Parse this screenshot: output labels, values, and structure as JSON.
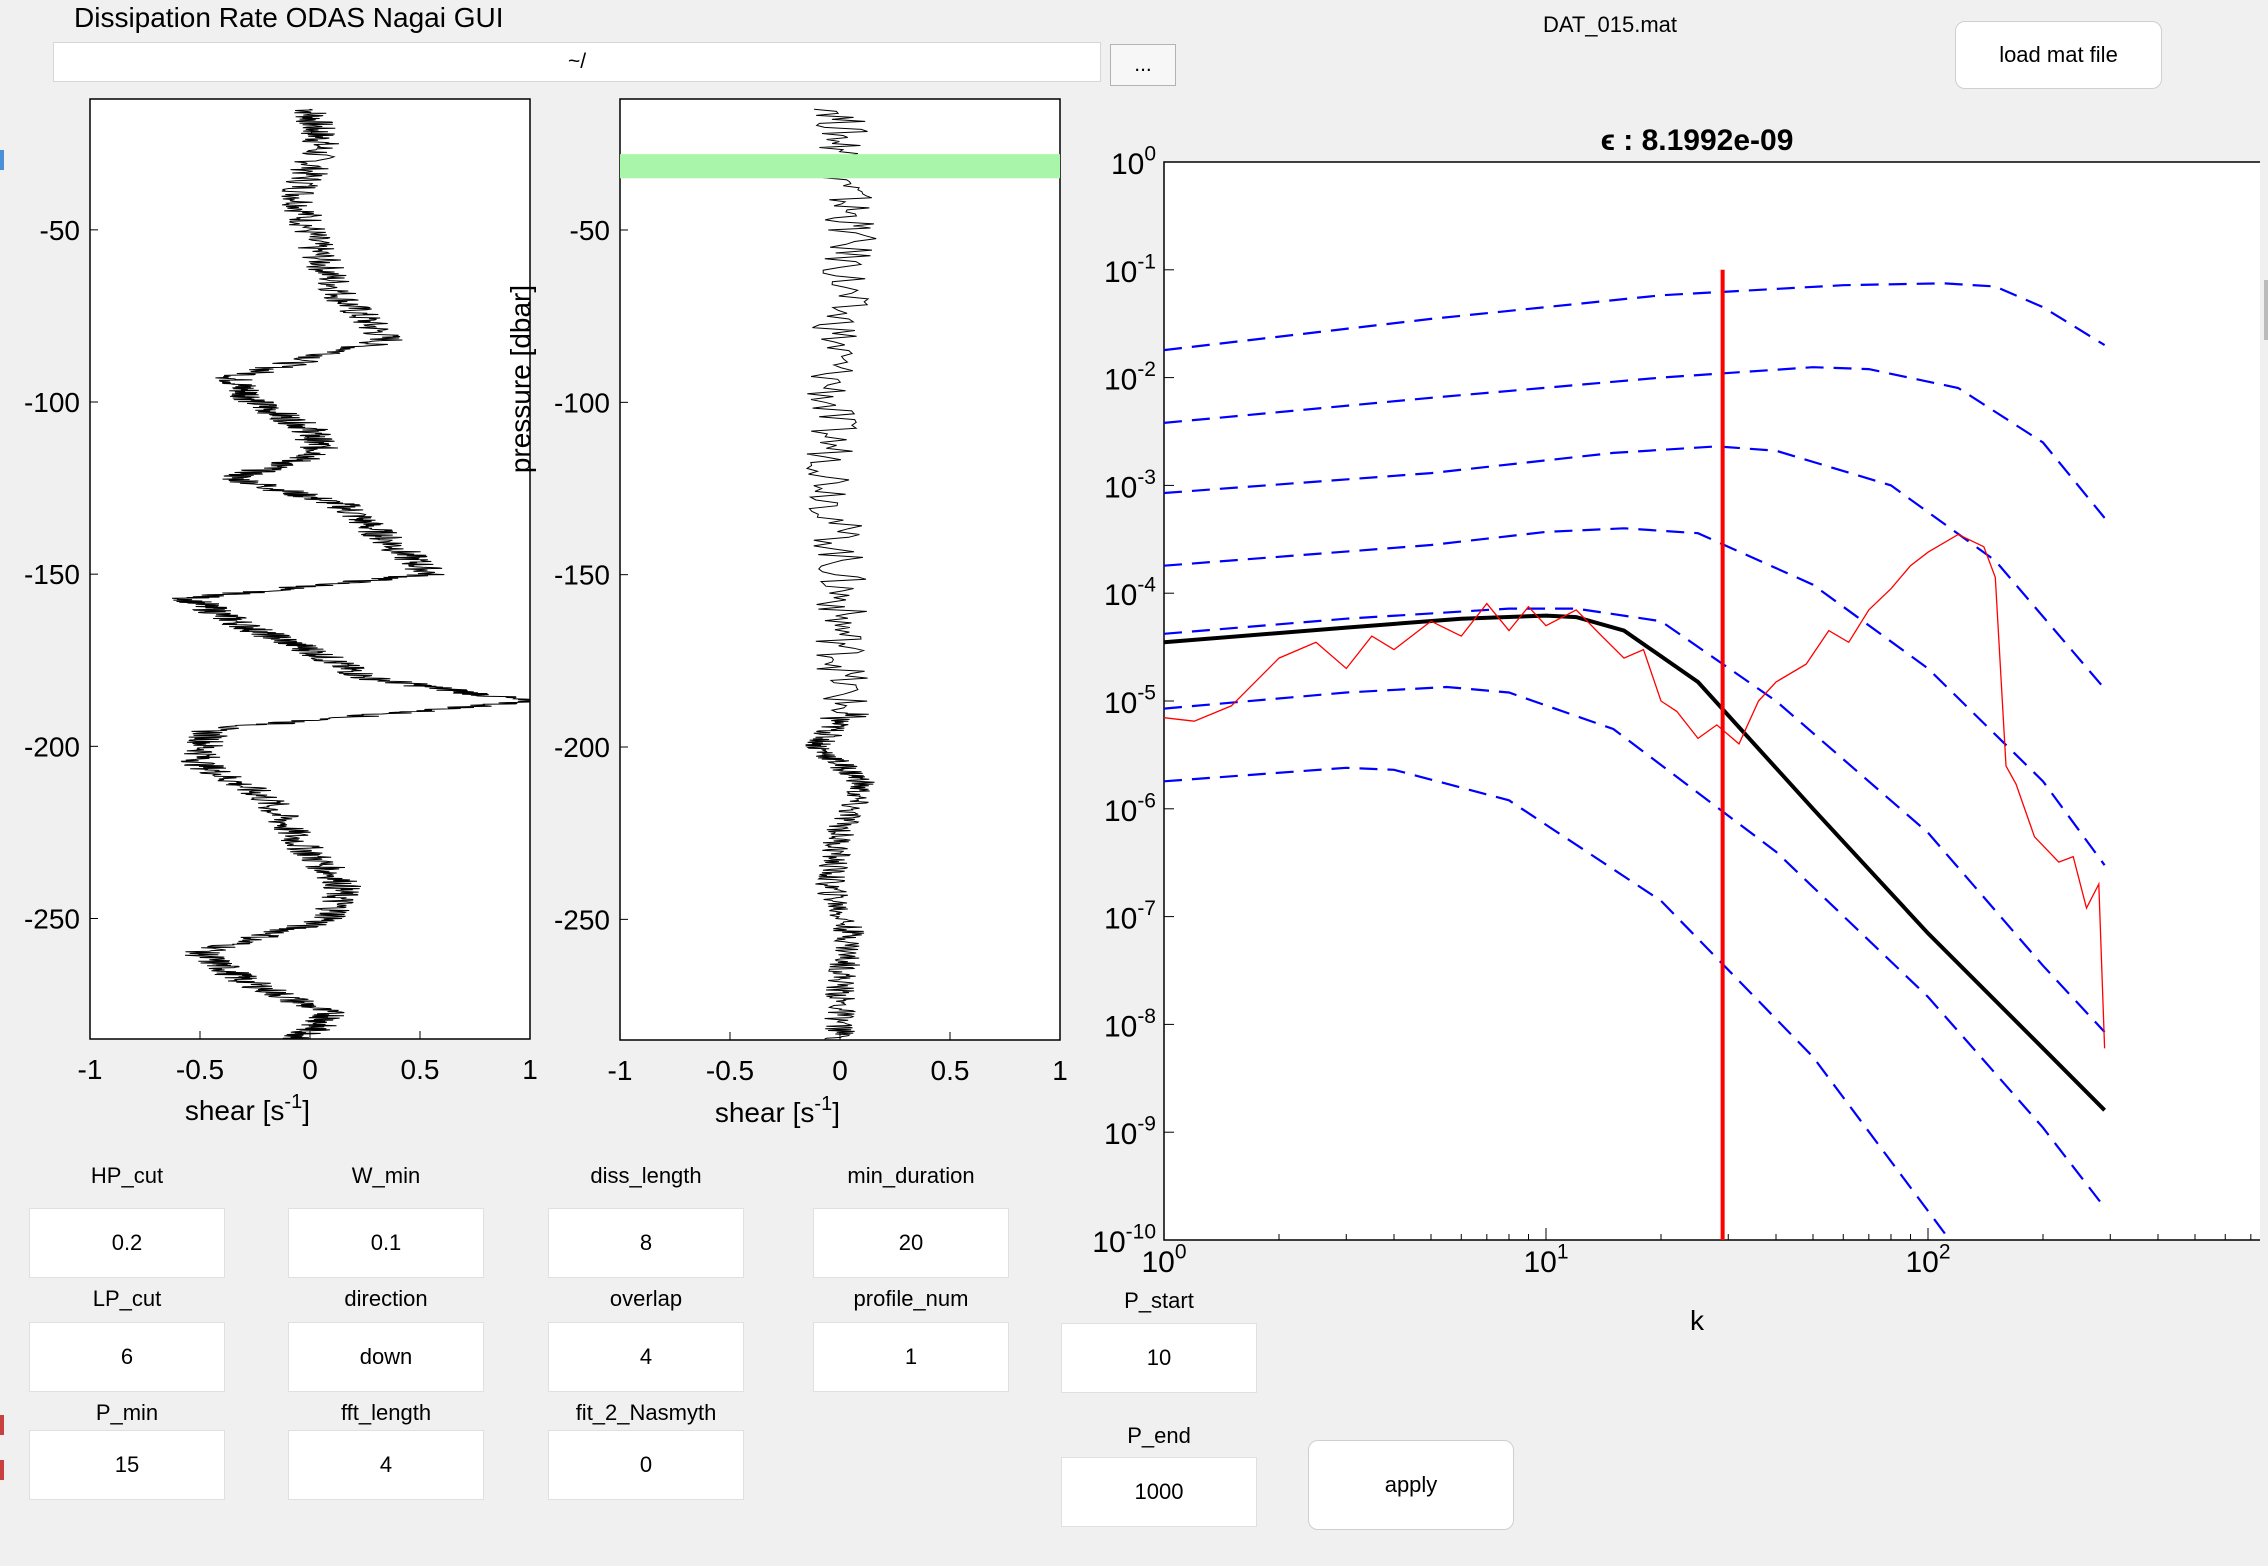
{
  "app": {
    "title": "Dissipation Rate ODAS Nagai GUI",
    "path_value": "~/",
    "browse_label": "...",
    "file_name": "DAT_015.mat",
    "load_label": "load mat file",
    "apply_label": "apply"
  },
  "params": {
    "HP_cut": {
      "label": "HP_cut",
      "value": "0.2"
    },
    "W_min": {
      "label": "W_min",
      "value": "0.1"
    },
    "diss_length": {
      "label": "diss_length",
      "value": "8"
    },
    "min_duration": {
      "label": "min_duration",
      "value": "20"
    },
    "LP_cut": {
      "label": "LP_cut",
      "value": "6"
    },
    "direction": {
      "label": "direction",
      "value": "down"
    },
    "overlap": {
      "label": "overlap",
      "value": "4"
    },
    "profile_num": {
      "label": "profile_num",
      "value": "1"
    },
    "P_start": {
      "label": "P_start",
      "value": "10"
    },
    "P_min": {
      "label": "P_min",
      "value": "15"
    },
    "fft_length": {
      "label": "fft_length",
      "value": "4"
    },
    "fit_2_Nasmyth": {
      "label": "fit_2_Nasmyth",
      "value": "0"
    },
    "P_end": {
      "label": "P_end",
      "value": "1000"
    }
  },
  "colors": {
    "trace": "#000000",
    "spectrum": "#ff0000",
    "nasmyth_ref": "#0000ff",
    "highlight_band": "#a9f5a9",
    "kcut_line": "#ff0000"
  },
  "chart_data": [
    {
      "type": "line",
      "title": "",
      "xlabel": "shear [s-1]",
      "ylabel": "",
      "xlim": [
        -1,
        1
      ],
      "ylim": [
        -285,
        -12
      ],
      "x_ticks": [
        "-1",
        "-0.5",
        "0",
        "0.5",
        "1"
      ],
      "y_ticks": [
        "-50",
        "-100",
        "-150",
        "-200",
        "-250"
      ],
      "series": [
        {
          "points": [
            [
              0.0,
              -15
            ],
            [
              0.05,
              -25
            ],
            [
              -0.05,
              -40
            ],
            [
              0.02,
              -55
            ],
            [
              0.15,
              -70
            ],
            [
              0.35,
              -82
            ],
            [
              -0.35,
              -93
            ],
            [
              -0.25,
              -100
            ],
            [
              0.0,
              -108
            ],
            [
              0.05,
              -115
            ],
            [
              -0.35,
              -122
            ],
            [
              0.15,
              -130
            ],
            [
              0.35,
              -140
            ],
            [
              0.55,
              -150
            ],
            [
              -0.55,
              -157
            ],
            [
              -0.3,
              -165
            ],
            [
              0.0,
              -172
            ],
            [
              0.25,
              -180
            ],
            [
              1.0,
              -187
            ],
            [
              -0.45,
              -195
            ],
            [
              -0.5,
              -205
            ],
            [
              -0.2,
              -215
            ],
            [
              -0.05,
              -228
            ],
            [
              0.15,
              -240
            ],
            [
              0.1,
              -250
            ],
            [
              -0.5,
              -260
            ],
            [
              -0.3,
              -268
            ],
            [
              0.1,
              -278
            ],
            [
              -0.05,
              -285
            ]
          ]
        }
      ]
    },
    {
      "type": "line",
      "title": "",
      "xlabel": "shear [s-1]",
      "ylabel": "pressure [dbar]",
      "xlim": [
        -1,
        1
      ],
      "ylim": [
        -285,
        -12
      ],
      "x_ticks": [
        "-1",
        "-0.5",
        "0",
        "0.5",
        "1"
      ],
      "y_ticks": [
        "-50",
        "-100",
        "-150",
        "-200",
        "-250"
      ],
      "highlight_band": [
        -28,
        -35
      ],
      "series": [
        {
          "points": [
            [
              0.0,
              -15
            ],
            [
              0.05,
              -50
            ],
            [
              -0.05,
              -100
            ],
            [
              0.0,
              -150
            ],
            [
              0.02,
              -190
            ],
            [
              -0.1,
              -200
            ],
            [
              0.1,
              -210
            ],
            [
              0.0,
              -225
            ],
            [
              -0.05,
              -240
            ],
            [
              0.05,
              -255
            ],
            [
              0.0,
              -270
            ],
            [
              0.0,
              -285
            ]
          ]
        }
      ]
    },
    {
      "type": "line",
      "title": "ϵ : 8.1992e-09",
      "xlabel": "k",
      "ylabel": "",
      "x_scale": "log",
      "y_scale": "log",
      "xlim": [
        1,
        1000
      ],
      "ylim": [
        1e-10,
        1
      ],
      "x_tick_exponents": [
        "0",
        "1",
        "2",
        "3"
      ],
      "y_tick_exponents": [
        "0",
        "-1",
        "-2",
        "-3",
        "-4",
        "-5",
        "-6",
        "-7",
        "-8",
        "-9",
        "-10"
      ],
      "vertical_line_k": 29,
      "series": [
        {
          "style": "dashed-blue",
          "points": [
            [
              1,
              0.018
            ],
            [
              5,
              0.035
            ],
            [
              20,
              0.058
            ],
            [
              60,
              0.072
            ],
            [
              110,
              0.075
            ],
            [
              150,
              0.07
            ],
            [
              200,
              0.045
            ],
            [
              290,
              0.02
            ]
          ]
        },
        {
          "style": "dashed-blue",
          "points": [
            [
              1,
              0.0038
            ],
            [
              5,
              0.0065
            ],
            [
              20,
              0.01
            ],
            [
              50,
              0.0125
            ],
            [
              70,
              0.012
            ],
            [
              120,
              0.008
            ],
            [
              200,
              0.0025
            ],
            [
              290,
              0.0005
            ]
          ]
        },
        {
          "style": "dashed-blue",
          "points": [
            [
              1,
              0.00085
            ],
            [
              5,
              0.0013
            ],
            [
              15,
              0.002
            ],
            [
              28,
              0.0023
            ],
            [
              40,
              0.0021
            ],
            [
              80,
              0.001
            ],
            [
              150,
              0.0002
            ],
            [
              290,
              1.3e-05
            ]
          ]
        },
        {
          "style": "dashed-blue",
          "points": [
            [
              1,
              0.00018
            ],
            [
              5,
              0.00028
            ],
            [
              10,
              0.00037
            ],
            [
              16,
              0.0004
            ],
            [
              25,
              0.00036
            ],
            [
              50,
              0.00012
            ],
            [
              100,
              2e-05
            ],
            [
              200,
              1.8e-06
            ],
            [
              290,
              3e-07
            ]
          ]
        },
        {
          "style": "dashed-blue",
          "points": [
            [
              1,
              4.2e-05
            ],
            [
              3,
              5.8e-05
            ],
            [
              8,
              7.2e-05
            ],
            [
              12,
              7.2e-05
            ],
            [
              20,
              5.5e-05
            ],
            [
              40,
              1e-05
            ],
            [
              100,
              6e-07
            ],
            [
              200,
              3.5e-08
            ],
            [
              290,
              8.5e-09
            ]
          ]
        },
        {
          "style": "dashed-blue",
          "points": [
            [
              1,
              8.5e-06
            ],
            [
              3,
              1.2e-05
            ],
            [
              5.5,
              1.35e-05
            ],
            [
              8,
              1.2e-05
            ],
            [
              15,
              5.5e-06
            ],
            [
              40,
              4e-07
            ],
            [
              100,
              1.8e-08
            ],
            [
              200,
              1.1e-09
            ],
            [
              290,
              2e-10
            ]
          ]
        },
        {
          "style": "dashed-blue",
          "points": [
            [
              1,
              1.8e-06
            ],
            [
              3,
              2.4e-06
            ],
            [
              4,
              2.3e-06
            ],
            [
              8,
              1.2e-06
            ],
            [
              20,
              1.4e-07
            ],
            [
              50,
              5e-09
            ],
            [
              114,
              1e-10
            ]
          ]
        },
        {
          "style": "solid-black",
          "points": [
            [
              1,
              3.5e-05
            ],
            [
              3,
              4.8e-05
            ],
            [
              6,
              5.8e-05
            ],
            [
              10,
              6.2e-05
            ],
            [
              12,
              6e-05
            ],
            [
              16,
              4.5e-05
            ],
            [
              25,
              1.5e-05
            ],
            [
              50,
              1e-06
            ],
            [
              100,
              7e-08
            ],
            [
              200,
              6e-09
            ],
            [
              290,
              1.6e-09
            ]
          ]
        },
        {
          "style": "thin-red",
          "points": [
            [
              1,
              7e-06
            ],
            [
              1.2,
              6.5e-06
            ],
            [
              1.5,
              9e-06
            ],
            [
              2,
              2.5e-05
            ],
            [
              2.5,
              3.5e-05
            ],
            [
              3,
              2e-05
            ],
            [
              3.5,
              4e-05
            ],
            [
              4,
              3e-05
            ],
            [
              5,
              5.5e-05
            ],
            [
              6,
              4e-05
            ],
            [
              7,
              8e-05
            ],
            [
              8,
              4.5e-05
            ],
            [
              9,
              7.5e-05
            ],
            [
              10,
              5e-05
            ],
            [
              12,
              7e-05
            ],
            [
              14,
              4e-05
            ],
            [
              16,
              2.5e-05
            ],
            [
              18,
              3e-05
            ],
            [
              20,
              1e-05
            ],
            [
              22,
              8e-06
            ],
            [
              25,
              4.5e-06
            ],
            [
              28,
              6e-06
            ],
            [
              32,
              4e-06
            ],
            [
              36,
              1e-05
            ],
            [
              40,
              1.5e-05
            ],
            [
              48,
              2.2e-05
            ],
            [
              55,
              4.5e-05
            ],
            [
              62,
              3.5e-05
            ],
            [
              70,
              7e-05
            ],
            [
              80,
              0.00011
            ],
            [
              90,
              0.00018
            ],
            [
              100,
              0.00024
            ],
            [
              120,
              0.00035
            ],
            [
              140,
              0.00027
            ],
            [
              150,
              0.00014
            ],
            [
              160,
              2.5e-06
            ],
            [
              170,
              1.7e-06
            ],
            [
              190,
              5.5e-07
            ],
            [
              220,
              3.2e-07
            ],
            [
              240,
              3.6e-07
            ],
            [
              260,
              1.2e-07
            ],
            [
              280,
              2e-07
            ],
            [
              290,
              6e-09
            ]
          ]
        }
      ]
    }
  ]
}
